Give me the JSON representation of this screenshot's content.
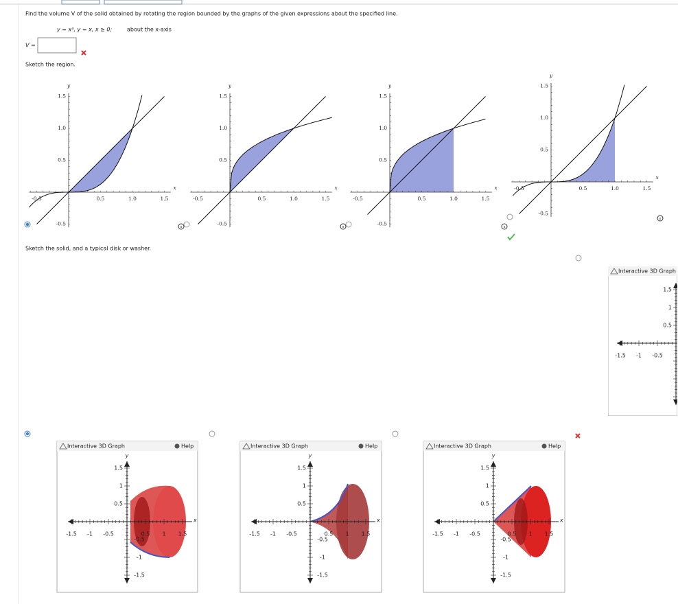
{
  "header": {
    "instruction": "Find the volume V of the solid obtained by rotating the region bounded by the graphs of the given expressions about the specified line.",
    "expression": "y = x³,  y = x,  x ≥ 0;",
    "axis_spec": "about the x-axis",
    "answer_label": "V ="
  },
  "region_prompt": "Sketch the region.",
  "region_graphs": [
    {
      "x_label": "x",
      "y_label": "y",
      "xticks": [
        "-0.5",
        "0.5",
        "1.0",
        "1.5"
      ],
      "yticks": [
        "1.5",
        "1.0",
        "0.5",
        "-0.5"
      ]
    },
    {
      "x_label": "x",
      "y_label": "y",
      "xticks": [
        "-0.5",
        "0.5",
        "1.0",
        "1.5"
      ],
      "yticks": [
        "1.5",
        "1.0",
        "0.5",
        "-0.5"
      ]
    },
    {
      "x_label": "x",
      "y_label": "y",
      "xticks": [
        "-0.5",
        "0.5",
        "1.0",
        "1.5"
      ],
      "yticks": [
        "1.5",
        "1.0",
        "0.5",
        "-0.5"
      ]
    },
    {
      "x_label": "x",
      "y_label": "y",
      "xticks": [
        "-0.5",
        "0.5",
        "1.0",
        "1.5"
      ],
      "yticks": [
        "1.5",
        "1.0",
        "0.5",
        "-0.5"
      ]
    }
  ],
  "solid_prompt": "Sketch the solid, and a typical disk or washer.",
  "solid_graphs": [
    {
      "title": "Interactive 3D Graph",
      "help": "Help",
      "x_label": "x",
      "y_label": "y",
      "yticks": [
        "1.5",
        "1",
        "0.5"
      ],
      "xticks": [
        "-1.5",
        "-1",
        "-0.5",
        "0.5",
        "1",
        "1.5"
      ],
      "zticks": [
        "-0.5",
        "-1",
        "-1.5"
      ]
    },
    {
      "title": "Interactive 3D Graph",
      "help": "Help",
      "x_label": "x",
      "y_label": "y",
      "yticks": [
        "1.5",
        "1",
        "0.5"
      ],
      "xticks": [
        "-1.5",
        "-1",
        "-0.5",
        "0.5",
        "1",
        "1.5"
      ],
      "zticks": [
        "-0.5",
        "-1",
        "-1.5"
      ]
    },
    {
      "title": "Interactive 3D Graph",
      "help": "Help",
      "x_label": "x",
      "y_label": "y",
      "yticks": [
        "1.5",
        "1",
        "0.5"
      ],
      "xticks": [
        "-1.5",
        "-1",
        "-0.5",
        "0.5",
        "1",
        "1.5"
      ],
      "zticks": [
        "-0.5",
        "-1",
        "-1.5"
      ]
    },
    {
      "title": "Interactive 3D Graph",
      "yticks": [
        "1.5",
        "1",
        "0.5"
      ],
      "xticks": [
        "-1.5",
        "-1",
        "-0.5"
      ]
    }
  ]
}
